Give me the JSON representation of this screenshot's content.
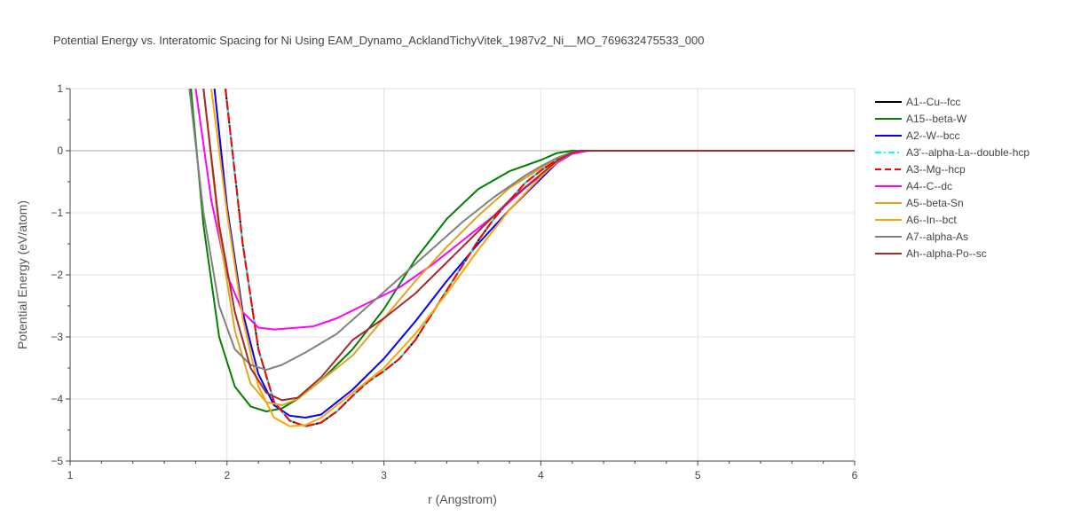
{
  "chart_data": {
    "type": "line",
    "title": "Potential Energy vs. Interatomic Spacing for Ni Using EAM_Dynamo_AcklandTichyVitek_1987v2_Ni__MO_769632475533_000",
    "xlabel": "r (Angstrom)",
    "ylabel": "Potential Energy (eV/atom)",
    "xlim": [
      1,
      6
    ],
    "ylim": [
      -5,
      1
    ],
    "xticks": [
      1,
      2,
      3,
      4,
      5,
      6
    ],
    "xtick_labels": [
      "1",
      "2",
      "3",
      "4",
      "5",
      "6"
    ],
    "yticks": [
      -5,
      -4,
      -3,
      -2,
      -1,
      0,
      1
    ],
    "ytick_labels": [
      "−5",
      "−4",
      "−3",
      "−2",
      "−1",
      "0",
      "1"
    ],
    "grid": true,
    "legend_position": "right",
    "series": [
      {
        "name": "A1--Cu--fcc",
        "color": "#000000",
        "dash": "solid",
        "points": [
          [
            1.99,
            1.0
          ],
          [
            2.1,
            -1.5
          ],
          [
            2.2,
            -3.2
          ],
          [
            2.3,
            -4.05
          ],
          [
            2.4,
            -4.35
          ],
          [
            2.5,
            -4.44
          ],
          [
            2.6,
            -4.38
          ],
          [
            2.7,
            -4.2
          ],
          [
            2.8,
            -3.95
          ],
          [
            2.9,
            -3.72
          ],
          [
            3.0,
            -3.55
          ],
          [
            3.1,
            -3.35
          ],
          [
            3.2,
            -3.05
          ],
          [
            3.3,
            -2.65
          ],
          [
            3.4,
            -2.25
          ],
          [
            3.5,
            -1.85
          ],
          [
            3.6,
            -1.45
          ],
          [
            3.7,
            -1.1
          ],
          [
            3.8,
            -0.8
          ],
          [
            3.9,
            -0.52
          ],
          [
            4.0,
            -0.32
          ],
          [
            4.1,
            -0.15
          ],
          [
            4.2,
            -0.03
          ],
          [
            4.3,
            0.0
          ],
          [
            6.0,
            0.0
          ]
        ]
      },
      {
        "name": "A15--beta-W",
        "color": "#008000",
        "dash": "solid",
        "points": [
          [
            1.77,
            1.0
          ],
          [
            1.85,
            -1.2
          ],
          [
            1.95,
            -3.0
          ],
          [
            2.05,
            -3.8
          ],
          [
            2.15,
            -4.12
          ],
          [
            2.25,
            -4.2
          ],
          [
            2.35,
            -4.15
          ],
          [
            2.45,
            -4.0
          ],
          [
            2.6,
            -3.7
          ],
          [
            2.8,
            -3.2
          ],
          [
            3.0,
            -2.55
          ],
          [
            3.2,
            -1.75
          ],
          [
            3.4,
            -1.1
          ],
          [
            3.6,
            -0.62
          ],
          [
            3.8,
            -0.33
          ],
          [
            4.0,
            -0.15
          ],
          [
            4.1,
            -0.04
          ],
          [
            4.2,
            0.0
          ],
          [
            6.0,
            0.0
          ]
        ]
      },
      {
        "name": "A2--W--bcc",
        "color": "#0000ff",
        "dash": "solid",
        "points": [
          [
            1.92,
            1.0
          ],
          [
            2.0,
            -0.9
          ],
          [
            2.1,
            -2.6
          ],
          [
            2.2,
            -3.6
          ],
          [
            2.3,
            -4.1
          ],
          [
            2.4,
            -4.27
          ],
          [
            2.5,
            -4.3
          ],
          [
            2.6,
            -4.25
          ],
          [
            2.8,
            -3.85
          ],
          [
            3.0,
            -3.35
          ],
          [
            3.2,
            -2.75
          ],
          [
            3.4,
            -2.1
          ],
          [
            3.6,
            -1.5
          ],
          [
            3.8,
            -0.95
          ],
          [
            4.0,
            -0.45
          ],
          [
            4.1,
            -0.2
          ],
          [
            4.2,
            -0.03
          ],
          [
            4.25,
            0.0
          ],
          [
            6.0,
            0.0
          ]
        ]
      },
      {
        "name": "A3'--alpha-La--double-hcp",
        "color": "#00ffff",
        "dash": "dashdot",
        "points": [
          [
            1.99,
            1.0
          ],
          [
            2.1,
            -1.5
          ],
          [
            2.2,
            -3.2
          ],
          [
            2.3,
            -4.05
          ],
          [
            2.4,
            -4.35
          ],
          [
            2.5,
            -4.44
          ],
          [
            2.6,
            -4.38
          ],
          [
            2.7,
            -4.2
          ],
          [
            2.8,
            -3.95
          ],
          [
            2.9,
            -3.72
          ],
          [
            3.0,
            -3.55
          ],
          [
            3.1,
            -3.35
          ],
          [
            3.2,
            -3.05
          ],
          [
            3.3,
            -2.65
          ],
          [
            3.4,
            -2.25
          ],
          [
            3.5,
            -1.85
          ],
          [
            3.6,
            -1.45
          ],
          [
            3.7,
            -1.1
          ],
          [
            3.8,
            -0.8
          ],
          [
            3.9,
            -0.52
          ],
          [
            4.0,
            -0.32
          ],
          [
            4.1,
            -0.15
          ],
          [
            4.2,
            -0.03
          ],
          [
            4.3,
            0.0
          ],
          [
            6.0,
            0.0
          ]
        ]
      },
      {
        "name": "A3--Mg--hcp",
        "color": "#ff0000",
        "dash": "dash",
        "points": [
          [
            1.99,
            1.0
          ],
          [
            2.1,
            -1.5
          ],
          [
            2.2,
            -3.2
          ],
          [
            2.3,
            -4.05
          ],
          [
            2.4,
            -4.35
          ],
          [
            2.5,
            -4.44
          ],
          [
            2.6,
            -4.38
          ],
          [
            2.7,
            -4.2
          ],
          [
            2.8,
            -3.95
          ],
          [
            2.9,
            -3.72
          ],
          [
            3.0,
            -3.55
          ],
          [
            3.1,
            -3.35
          ],
          [
            3.2,
            -3.05
          ],
          [
            3.3,
            -2.65
          ],
          [
            3.4,
            -2.25
          ],
          [
            3.5,
            -1.85
          ],
          [
            3.6,
            -1.45
          ],
          [
            3.7,
            -1.1
          ],
          [
            3.8,
            -0.8
          ],
          [
            3.9,
            -0.52
          ],
          [
            4.0,
            -0.32
          ],
          [
            4.1,
            -0.15
          ],
          [
            4.2,
            -0.03
          ],
          [
            4.3,
            0.0
          ],
          [
            6.0,
            0.0
          ]
        ]
      },
      {
        "name": "A4--C--dc",
        "color": "#ff00ff",
        "dash": "solid",
        "points": [
          [
            1.8,
            1.0
          ],
          [
            1.9,
            -0.8
          ],
          [
            2.0,
            -2.0
          ],
          [
            2.1,
            -2.6
          ],
          [
            2.2,
            -2.85
          ],
          [
            2.3,
            -2.88
          ],
          [
            2.4,
            -2.86
          ],
          [
            2.55,
            -2.83
          ],
          [
            2.7,
            -2.7
          ],
          [
            2.9,
            -2.45
          ],
          [
            3.1,
            -2.2
          ],
          [
            3.3,
            -1.85
          ],
          [
            3.5,
            -1.45
          ],
          [
            3.7,
            -1.05
          ],
          [
            3.9,
            -0.6
          ],
          [
            4.0,
            -0.4
          ],
          [
            4.1,
            -0.2
          ],
          [
            4.2,
            -0.05
          ],
          [
            4.3,
            0.0
          ],
          [
            6.0,
            0.0
          ]
        ]
      },
      {
        "name": "A5--beta-Sn",
        "color": "#daa520",
        "dash": "solid",
        "points": [
          [
            1.85,
            1.0
          ],
          [
            1.95,
            -1.3
          ],
          [
            2.05,
            -2.9
          ],
          [
            2.15,
            -3.75
          ],
          [
            2.25,
            -4.05
          ],
          [
            2.35,
            -4.1
          ],
          [
            2.45,
            -4.0
          ],
          [
            2.6,
            -3.7
          ],
          [
            2.8,
            -3.3
          ],
          [
            3.0,
            -2.7
          ],
          [
            3.2,
            -2.1
          ],
          [
            3.4,
            -1.55
          ],
          [
            3.6,
            -1.05
          ],
          [
            3.8,
            -0.6
          ],
          [
            4.0,
            -0.28
          ],
          [
            4.1,
            -0.12
          ],
          [
            4.2,
            -0.02
          ],
          [
            4.25,
            0.0
          ],
          [
            6.0,
            0.0
          ]
        ]
      },
      {
        "name": "A6--In--bct",
        "color": "#ffa500",
        "dash": "solid",
        "points": [
          [
            1.9,
            1.0
          ],
          [
            2.0,
            -1.0
          ],
          [
            2.1,
            -2.7
          ],
          [
            2.2,
            -3.8
          ],
          [
            2.3,
            -4.3
          ],
          [
            2.4,
            -4.44
          ],
          [
            2.5,
            -4.42
          ],
          [
            2.6,
            -4.3
          ],
          [
            2.8,
            -3.9
          ],
          [
            3.0,
            -3.5
          ],
          [
            3.2,
            -2.95
          ],
          [
            3.4,
            -2.3
          ],
          [
            3.6,
            -1.6
          ],
          [
            3.8,
            -0.95
          ],
          [
            4.0,
            -0.42
          ],
          [
            4.1,
            -0.18
          ],
          [
            4.2,
            -0.03
          ],
          [
            4.25,
            0.0
          ],
          [
            6.0,
            0.0
          ]
        ]
      },
      {
        "name": "A7--alpha-As",
        "color": "#808080",
        "dash": "solid",
        "points": [
          [
            1.76,
            1.0
          ],
          [
            1.85,
            -1.0
          ],
          [
            1.95,
            -2.5
          ],
          [
            2.05,
            -3.2
          ],
          [
            2.15,
            -3.45
          ],
          [
            2.25,
            -3.53
          ],
          [
            2.35,
            -3.45
          ],
          [
            2.5,
            -3.25
          ],
          [
            2.7,
            -2.95
          ],
          [
            2.9,
            -2.5
          ],
          [
            3.1,
            -2.05
          ],
          [
            3.3,
            -1.6
          ],
          [
            3.5,
            -1.15
          ],
          [
            3.7,
            -0.75
          ],
          [
            3.9,
            -0.4
          ],
          [
            4.0,
            -0.25
          ],
          [
            4.1,
            -0.12
          ],
          [
            4.2,
            -0.02
          ],
          [
            4.25,
            0.0
          ],
          [
            6.0,
            0.0
          ]
        ]
      },
      {
        "name": "Ah--alpha-Po--sc",
        "color": "#a52a2a",
        "dash": "solid",
        "points": [
          [
            1.85,
            1.0
          ],
          [
            1.95,
            -1.2
          ],
          [
            2.05,
            -2.6
          ],
          [
            2.15,
            -3.5
          ],
          [
            2.25,
            -3.9
          ],
          [
            2.35,
            -4.02
          ],
          [
            2.45,
            -3.98
          ],
          [
            2.6,
            -3.65
          ],
          [
            2.8,
            -3.05
          ],
          [
            3.0,
            -2.7
          ],
          [
            3.2,
            -2.3
          ],
          [
            3.4,
            -1.8
          ],
          [
            3.6,
            -1.3
          ],
          [
            3.8,
            -0.8
          ],
          [
            4.0,
            -0.38
          ],
          [
            4.1,
            -0.17
          ],
          [
            4.2,
            -0.03
          ],
          [
            4.25,
            0.0
          ],
          [
            6.0,
            0.0
          ]
        ]
      }
    ]
  }
}
